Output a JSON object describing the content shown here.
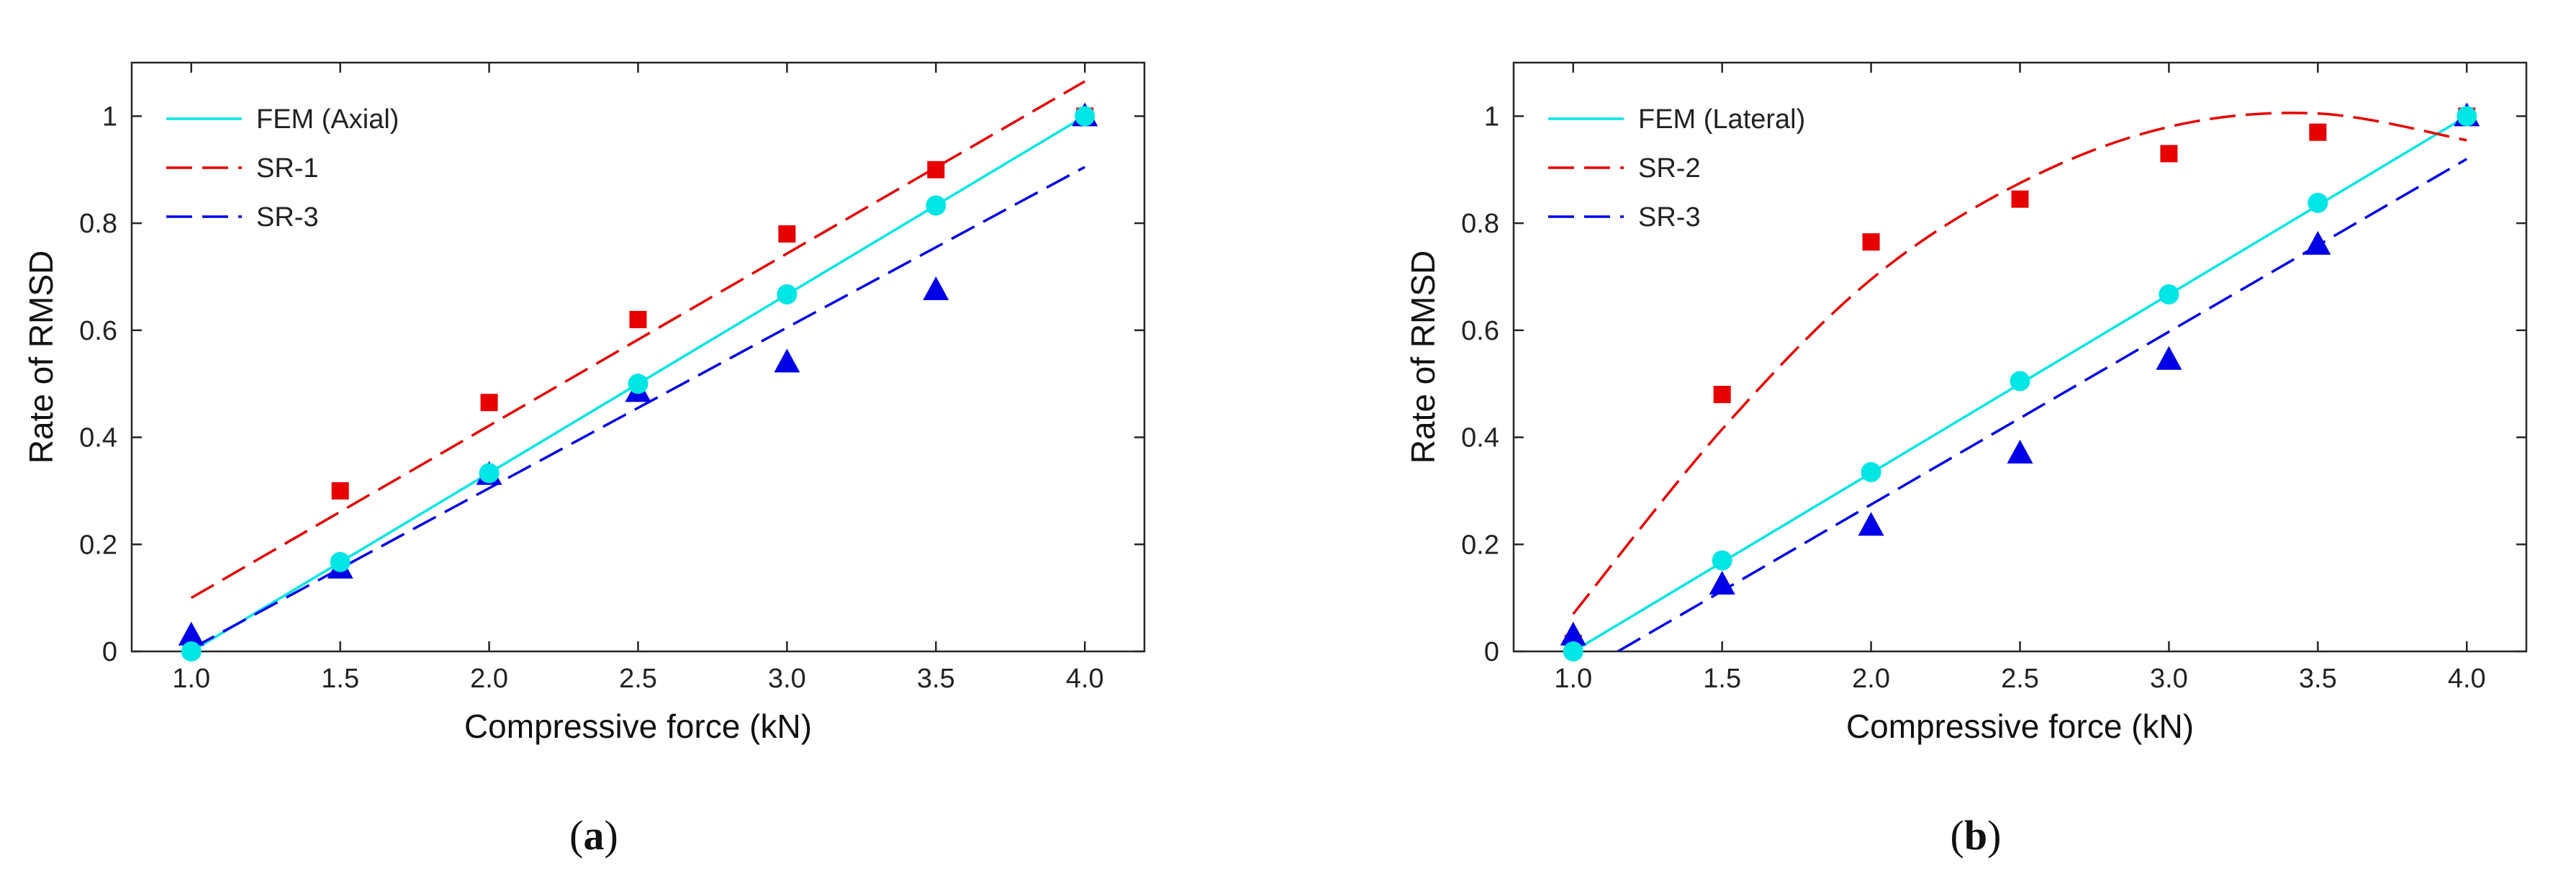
{
  "chart_data": [
    {
      "type": "line",
      "caption_letter": "a",
      "xlabel": "Compressive force (kN)",
      "ylabel": "Rate of RMSD",
      "xlim": [
        0.8,
        4.2
      ],
      "ylim": [
        0,
        1.1
      ],
      "xticks": [
        1.0,
        1.5,
        2.0,
        2.5,
        3.0,
        3.5,
        4.0
      ],
      "xtick_labels": [
        "1.0",
        "1.5",
        "2.0",
        "2.5",
        "3.0",
        "3.5",
        "4.0"
      ],
      "yticks": [
        0,
        0.2,
        0.4,
        0.6,
        0.8,
        1
      ],
      "ytick_labels": [
        "0",
        "0.2",
        "0.4",
        "0.6",
        "0.8",
        "1"
      ],
      "legend": [
        "FEM (Axial)",
        "SR-1",
        "SR-3"
      ],
      "series": [
        {
          "name": "FEM (Axial)",
          "color": "#00e5e5",
          "line": "solid",
          "marker": "circle",
          "x": [
            1.0,
            1.5,
            2.0,
            2.5,
            3.0,
            3.5,
            4.0
          ],
          "y": [
            0,
            0.167,
            0.333,
            0.5,
            0.667,
            0.833,
            1.0
          ],
          "fit_x": [
            1.0,
            4.0
          ],
          "fit_y": [
            0,
            1.0
          ]
        },
        {
          "name": "SR-1",
          "color": "#e60000",
          "line": "dashed",
          "marker": "square",
          "x": [
            1.0,
            1.5,
            2.0,
            2.5,
            3.0,
            3.5,
            4.0
          ],
          "y": [
            0.01,
            0.3,
            0.465,
            0.62,
            0.78,
            0.9,
            1.0
          ],
          "fit_x": [
            1.0,
            4.0
          ],
          "fit_y": [
            0.1,
            1.065
          ]
        },
        {
          "name": "SR-3",
          "color": "#0000e6",
          "line": "dashed",
          "marker": "triangle",
          "x": [
            1.0,
            1.5,
            2.0,
            2.5,
            3.0,
            3.5,
            4.0
          ],
          "y": [
            0.03,
            0.155,
            0.33,
            0.485,
            0.54,
            0.675,
            1.0
          ],
          "fit_x": [
            1.0,
            4.0
          ],
          "fit_y": [
            0.005,
            0.905
          ]
        }
      ]
    },
    {
      "type": "line",
      "caption_letter": "b",
      "xlabel": "Compressive force (kN)",
      "ylabel": "Rate of RMSD",
      "xlim": [
        0.8,
        4.2
      ],
      "ylim": [
        0,
        1.1
      ],
      "xticks": [
        1.0,
        1.5,
        2.0,
        2.5,
        3.0,
        3.5,
        4.0
      ],
      "xtick_labels": [
        "1.0",
        "1.5",
        "2.0",
        "2.5",
        "3.0",
        "3.5",
        "4.0"
      ],
      "yticks": [
        0,
        0.2,
        0.4,
        0.6,
        0.8,
        1
      ],
      "ytick_labels": [
        "0",
        "0.2",
        "0.4",
        "0.6",
        "0.8",
        "1"
      ],
      "legend": [
        "FEM (Lateral)",
        "SR-2",
        "SR-3"
      ],
      "series": [
        {
          "name": "FEM (Lateral)",
          "color": "#00e5e5",
          "line": "solid",
          "marker": "circle",
          "x": [
            1.0,
            1.5,
            2.0,
            2.5,
            3.0,
            3.5,
            4.0
          ],
          "y": [
            0,
            0.17,
            0.335,
            0.505,
            0.667,
            0.838,
            1.0
          ],
          "fit_x": [
            1.0,
            4.0
          ],
          "fit_y": [
            0,
            1.0
          ]
        },
        {
          "name": "SR-2",
          "color": "#e60000",
          "line": "dashed",
          "marker": "square",
          "x": [
            1.0,
            1.5,
            2.0,
            2.5,
            3.0,
            3.5,
            4.0
          ],
          "y": [
            0.015,
            0.48,
            0.765,
            0.845,
            0.93,
            0.97,
            1.0
          ],
          "fit_x": [
            1.0,
            1.5,
            2.0,
            2.5,
            3.0,
            3.5,
            4.0
          ],
          "fit_y": [
            0.07,
            0.415,
            0.695,
            0.875,
            0.98,
            1.005,
            0.955
          ]
        },
        {
          "name": "SR-3",
          "color": "#0000e6",
          "line": "dashed",
          "marker": "triangle",
          "x": [
            1.0,
            1.5,
            2.0,
            2.5,
            3.0,
            3.5,
            4.0
          ],
          "y": [
            0.03,
            0.125,
            0.235,
            0.37,
            0.545,
            0.76,
            1.0
          ],
          "fit_x": [
            1.15,
            4.0
          ],
          "fit_y": [
            0,
            0.92
          ]
        }
      ]
    }
  ]
}
